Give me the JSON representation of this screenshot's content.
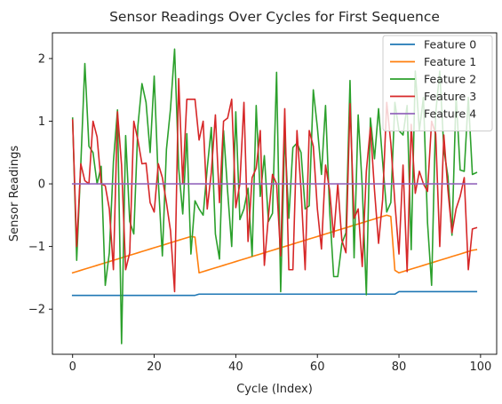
{
  "chart_data": {
    "type": "line",
    "title": "Sensor Readings Over Cycles for First Sequence",
    "xlabel": "Cycle (Index)",
    "ylabel": "Sensor Readings",
    "xlim": [
      -4.95,
      103.95
    ],
    "ylim": [
      -2.72,
      2.41
    ],
    "xticks": [
      0,
      20,
      40,
      60,
      80,
      100
    ],
    "yticks": [
      -2,
      -1,
      0,
      1,
      2
    ],
    "xtick_labels": [
      "0",
      "20",
      "40",
      "60",
      "80",
      "100"
    ],
    "ytick_labels": [
      "−2",
      "−1",
      "0",
      "1",
      "2"
    ],
    "grid": false,
    "legend_position": "top-right",
    "x_start": 0,
    "series": [
      {
        "name": "Feature 0",
        "color": "#1f77b4",
        "values": [
          -1.78,
          -1.78,
          -1.78,
          -1.78,
          -1.78,
          -1.78,
          -1.78,
          -1.78,
          -1.78,
          -1.78,
          -1.78,
          -1.78,
          -1.78,
          -1.78,
          -1.78,
          -1.78,
          -1.78,
          -1.78,
          -1.78,
          -1.78,
          -1.78,
          -1.78,
          -1.78,
          -1.78,
          -1.78,
          -1.78,
          -1.78,
          -1.78,
          -1.78,
          -1.78,
          -1.78,
          -1.76,
          -1.76,
          -1.76,
          -1.76,
          -1.76,
          -1.76,
          -1.76,
          -1.76,
          -1.76,
          -1.76,
          -1.76,
          -1.76,
          -1.76,
          -1.76,
          -1.76,
          -1.76,
          -1.76,
          -1.76,
          -1.76,
          -1.76,
          -1.76,
          -1.76,
          -1.76,
          -1.76,
          -1.76,
          -1.76,
          -1.76,
          -1.76,
          -1.76,
          -1.76,
          -1.76,
          -1.76,
          -1.76,
          -1.76,
          -1.76,
          -1.76,
          -1.76,
          -1.76,
          -1.76,
          -1.76,
          -1.76,
          -1.76,
          -1.76,
          -1.76,
          -1.76,
          -1.76,
          -1.76,
          -1.76,
          -1.76,
          -1.72,
          -1.72,
          -1.72,
          -1.72,
          -1.72,
          -1.72,
          -1.72,
          -1.72,
          -1.72,
          -1.72,
          -1.72,
          -1.72,
          -1.72,
          -1.72,
          -1.72,
          -1.72,
          -1.72,
          -1.72,
          -1.72,
          -1.72
        ]
      },
      {
        "name": "Feature 1",
        "color": "#ff7f0e",
        "values": [
          -1.42,
          -1.4,
          -1.38,
          -1.36,
          -1.34,
          -1.32,
          -1.3,
          -1.28,
          -1.26,
          -1.24,
          -1.22,
          -1.2,
          -1.18,
          -1.16,
          -1.14,
          -1.12,
          -1.1,
          -1.08,
          -1.06,
          -1.04,
          -1.02,
          -1.0,
          -0.98,
          -0.96,
          -0.94,
          -0.92,
          -0.9,
          -0.88,
          -0.86,
          -0.84,
          -0.85,
          -1.42,
          -1.4,
          -1.38,
          -1.36,
          -1.34,
          -1.32,
          -1.3,
          -1.28,
          -1.26,
          -1.24,
          -1.22,
          -1.2,
          -1.18,
          -1.16,
          -1.14,
          -1.12,
          -1.1,
          -1.08,
          -1.06,
          -1.04,
          -1.02,
          -1.0,
          -0.98,
          -0.96,
          -0.94,
          -0.92,
          -0.9,
          -0.88,
          -0.86,
          -0.84,
          -0.82,
          -0.8,
          -0.78,
          -0.76,
          -0.74,
          -0.72,
          -0.7,
          -0.68,
          -0.66,
          -0.64,
          -0.62,
          -0.6,
          -0.58,
          -0.56,
          -0.54,
          -0.52,
          -0.5,
          -0.52,
          -1.38,
          -1.42,
          -1.4,
          -1.38,
          -1.36,
          -1.34,
          -1.32,
          -1.3,
          -1.28,
          -1.26,
          -1.24,
          -1.22,
          -1.2,
          -1.18,
          -1.16,
          -1.14,
          -1.12,
          -1.1,
          -1.08,
          -1.06,
          -1.05
        ]
      },
      {
        "name": "Feature 2",
        "color": "#2ca02c",
        "values": [
          1.05,
          -1.22,
          0.3,
          1.92,
          0.6,
          0.5,
          0.0,
          0.28,
          -1.62,
          -1.1,
          0.35,
          1.18,
          -2.55,
          0.77,
          -0.6,
          -0.8,
          0.92,
          1.6,
          1.3,
          0.5,
          1.72,
          0.05,
          -1.15,
          0.55,
          1.2,
          2.15,
          0.25,
          -0.48,
          0.8,
          -1.12,
          -0.27,
          -0.4,
          -0.5,
          0.25,
          0.9,
          -0.8,
          -1.2,
          0.85,
          -0.12,
          -1.0,
          1.15,
          -0.57,
          -0.4,
          -0.07,
          -1.15,
          1.25,
          -0.2,
          0.45,
          -0.6,
          -0.47,
          1.78,
          -1.72,
          0.8,
          -0.55,
          0.58,
          0.65,
          0.5,
          -0.4,
          -0.35,
          1.5,
          0.9,
          0.15,
          1.25,
          -0.42,
          -1.48,
          -1.48,
          -0.95,
          -0.78,
          1.65,
          -1.18,
          1.1,
          -0.05,
          -1.77,
          1.05,
          0.4,
          1.2,
          0.35,
          -0.45,
          -0.3,
          1.3,
          0.85,
          0.78,
          1.25,
          -1.05,
          1.8,
          0.85,
          1.38,
          -0.62,
          -1.62,
          1.12,
          1.8,
          0.55,
          0.12,
          -0.82,
          1.42,
          0.22,
          0.2,
          1.38,
          0.15,
          0.18
        ]
      },
      {
        "name": "Feature 3",
        "color": "#d62728",
        "values": [
          1.02,
          -1.0,
          0.32,
          0.05,
          0.0,
          1.0,
          0.75,
          0.0,
          -0.03,
          -0.4,
          -1.37,
          1.15,
          0.3,
          -1.37,
          -1.1,
          1.0,
          0.7,
          0.32,
          0.33,
          -0.3,
          -0.45,
          0.32,
          0.1,
          -0.3,
          -0.75,
          -1.72,
          1.68,
          0.0,
          1.35,
          1.35,
          1.35,
          0.7,
          1.0,
          -0.4,
          0.18,
          1.1,
          -0.3,
          1.0,
          1.05,
          1.35,
          -0.38,
          0.0,
          1.3,
          -0.92,
          0.1,
          0.25,
          0.85,
          -1.3,
          -0.52,
          0.15,
          0.0,
          -1.15,
          1.2,
          -1.37,
          -1.37,
          0.85,
          -0.1,
          -1.37,
          0.85,
          0.6,
          -0.4,
          -1.04,
          0.3,
          -0.1,
          -0.85,
          0.0,
          -0.9,
          -1.1,
          1.28,
          -0.55,
          -0.4,
          -1.32,
          0.2,
          0.9,
          -0.1,
          -0.95,
          -0.25,
          1.3,
          0.65,
          -0.3,
          -1.12,
          0.3,
          -1.4,
          0.95,
          -0.15,
          0.2,
          0.0,
          -0.12,
          1.0,
          0.8,
          -1.0,
          0.78,
          -0.1,
          -0.78,
          -0.4,
          -0.2,
          0.1,
          -1.37,
          -0.72,
          -0.7
        ]
      },
      {
        "name": "Feature 4",
        "color": "#9467bd",
        "values": [
          0,
          0,
          0,
          0,
          0,
          0,
          0,
          0,
          0,
          0,
          0,
          0,
          0,
          0,
          0,
          0,
          0,
          0,
          0,
          0,
          0,
          0,
          0,
          0,
          0,
          0,
          0,
          0,
          0,
          0,
          0,
          0,
          0,
          0,
          0,
          0,
          0,
          0,
          0,
          0,
          0,
          0,
          0,
          0,
          0,
          0,
          0,
          0,
          0,
          0,
          0,
          0,
          0,
          0,
          0,
          0,
          0,
          0,
          0,
          0,
          0,
          0,
          0,
          0,
          0,
          0,
          0,
          0,
          0,
          0,
          0,
          0,
          0,
          0,
          0,
          0,
          0,
          0,
          0,
          0,
          0,
          0,
          0,
          0,
          0,
          0,
          0,
          0,
          0,
          0,
          0,
          0,
          0,
          0,
          0,
          0,
          0,
          0,
          0,
          0
        ]
      }
    ]
  }
}
